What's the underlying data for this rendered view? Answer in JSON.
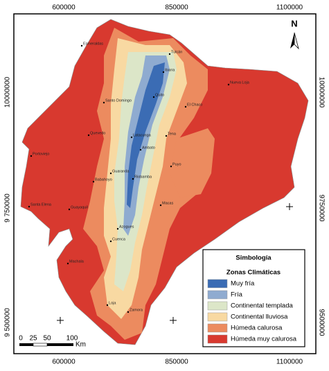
{
  "axes": {
    "top": [
      "600000",
      "850000",
      "1100000"
    ],
    "bottom": [
      "600000",
      "850000",
      "1100000"
    ],
    "left": [
      "10000000",
      "9 750000",
      "9 500000"
    ],
    "right": [
      "10000000",
      "9750000",
      "9500000"
    ]
  },
  "north": "N",
  "scale": {
    "labels": [
      "0",
      "25",
      "50",
      "100"
    ],
    "unit": "Km"
  },
  "legend": {
    "title": "Simbología",
    "subtitle": "Zonas Climáticas",
    "items": [
      {
        "label": "Muy fría",
        "color": "#3b6cb4"
      },
      {
        "label": "Fría",
        "color": "#8fabd0"
      },
      {
        "label": "Continental templada",
        "color": "#dce6c8"
      },
      {
        "label": "Continental lluviosa",
        "color": "#f8d9a2"
      },
      {
        "label": "Húmeda calurosa",
        "color": "#ec8b5f"
      },
      {
        "label": "Húmeda muy calurosa",
        "color": "#d8392f"
      }
    ]
  },
  "cities": [
    "Tulcán",
    "Ibarra",
    "Quito",
    "Esmeraldas",
    "Santo Domingo",
    "Latacunga",
    "Ambato",
    "Riobamba",
    "Guaranda",
    "Cuenca",
    "Azogues",
    "Loja",
    "Zamora",
    "Macas",
    "Puyo",
    "Tena",
    "Nueva Loja",
    "Machala",
    "Guayaquil",
    "Portoviejo",
    "Quevedo",
    "Babahoyo",
    "Santa Elena",
    "El Chaco"
  ]
}
